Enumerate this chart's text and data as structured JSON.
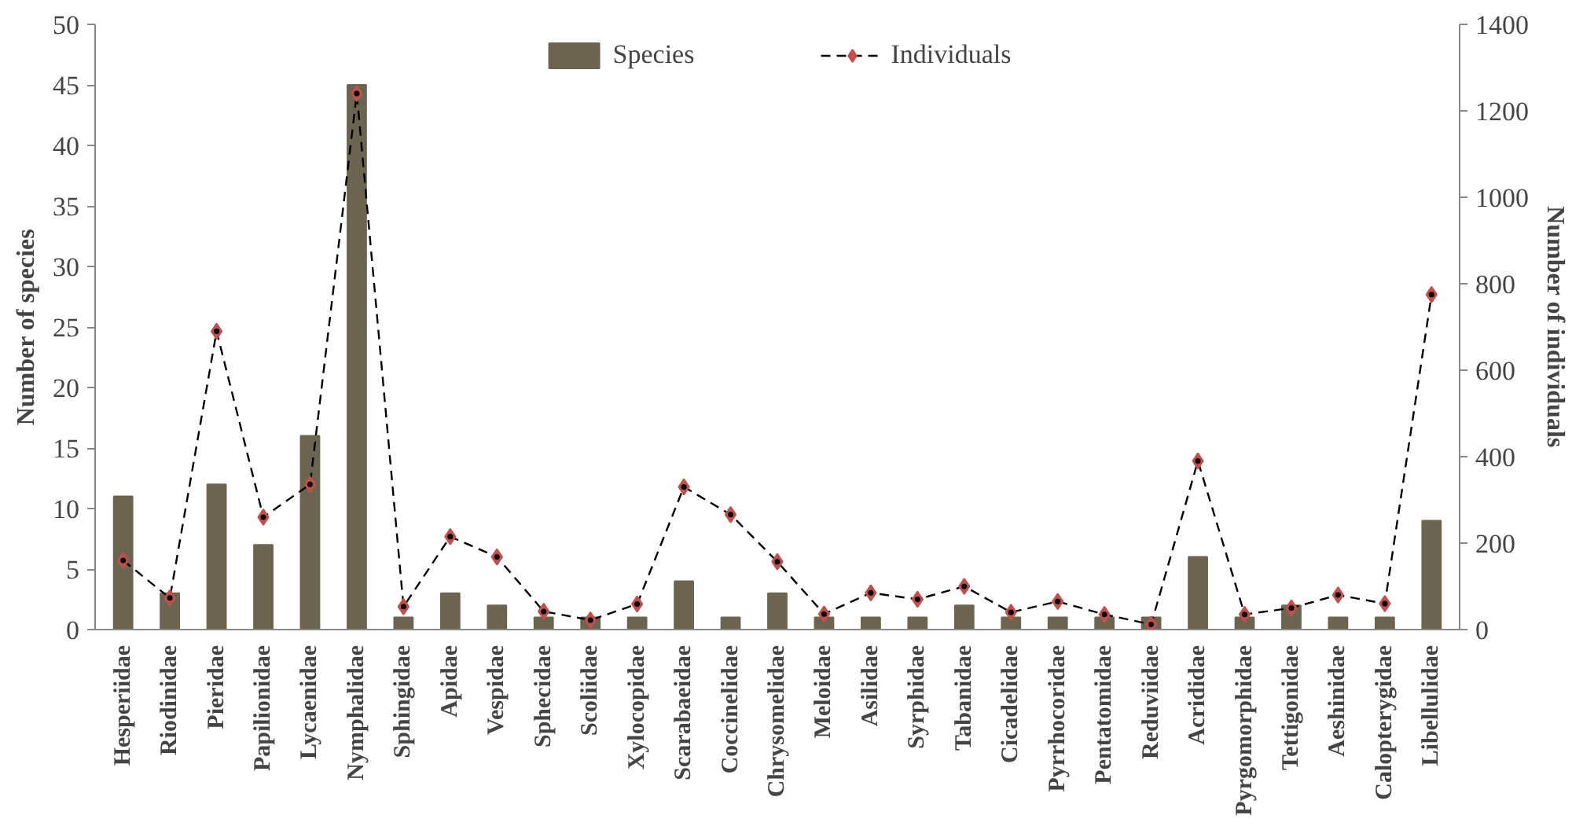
{
  "chart_data": {
    "type": "bar",
    "categories": [
      "Hesperiidae",
      "Riodinidae",
      "Pieridae",
      "Papilionidae",
      "Lycaenidae",
      "Nymphalidae",
      "Sphingidae",
      "Apidae",
      "Vespidae",
      "Sphecidae",
      "Scoliidae",
      "Xylocopidae",
      "Scarabaeidae",
      "Coccinelidae",
      "Chrysomelidae",
      "Meloidae",
      "Asilidae",
      "Syrphidae",
      "Tabanidae",
      "Cicadelidae",
      "Pyrrhocoridae",
      "Pentatomidae",
      "Reduviidae",
      "Acrididae",
      "Pyrgomorphidae",
      "Tettigonidae",
      "Aeshinidae",
      "Calopterygidae",
      "Libellulidae"
    ],
    "series": [
      {
        "name": "Species",
        "color": "#6b6450",
        "values": [
          11,
          3,
          12,
          7,
          16,
          45,
          1,
          3,
          2,
          1,
          1,
          1,
          4,
          1,
          3,
          1,
          1,
          1,
          2,
          1,
          1,
          1,
          1,
          6,
          1,
          2,
          1,
          1,
          9
        ]
      },
      {
        "name": "Individuals",
        "type": "line",
        "axis": "y2",
        "color": "#c0504d",
        "marker": "diamond",
        "line_style": "dashed",
        "values": [
          160,
          73,
          690,
          260,
          336,
          1240,
          53,
          215,
          168,
          42,
          22,
          59,
          330,
          266,
          157,
          36,
          85,
          70,
          100,
          40,
          65,
          35,
          12,
          390,
          35,
          50,
          80,
          60,
          775
        ]
      }
    ],
    "ylabel": "Number of species",
    "y2label": "Number of individuals",
    "ylim": [
      0,
      50
    ],
    "yticks": [
      0,
      5,
      10,
      15,
      20,
      25,
      30,
      35,
      40,
      45,
      50
    ],
    "y2lim": [
      0,
      1400
    ],
    "y2ticks": [
      0,
      200,
      400,
      600,
      800,
      1000,
      1200,
      1400
    ],
    "grid": false,
    "legend": "top"
  }
}
